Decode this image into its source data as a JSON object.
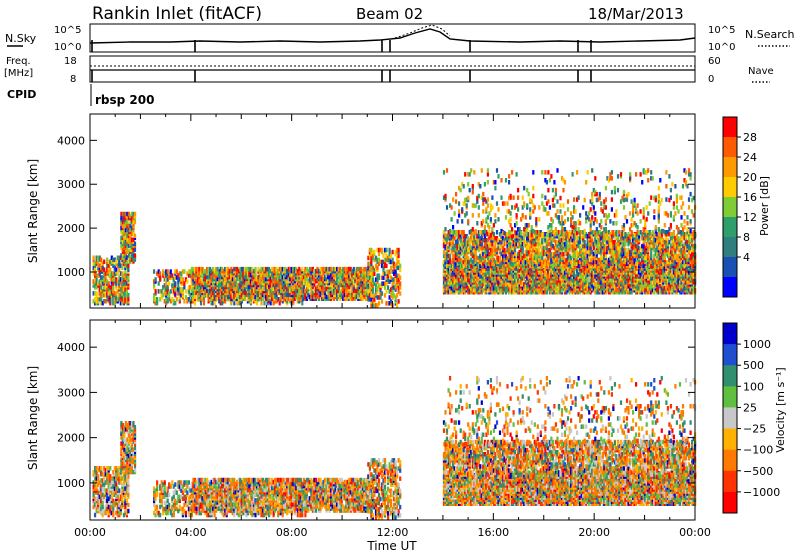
{
  "header": {
    "station": "Rankin Inlet (fitACF)",
    "beam": "Beam 02",
    "date": "18/Mar/2013"
  },
  "top_panel": {
    "left_label": "N.Sky",
    "right_label": "N.Search",
    "left_ticks": [
      "10^5",
      "10^0"
    ],
    "right_ticks": [
      "10^5",
      "10^0"
    ]
  },
  "freq_panel": {
    "left_label_1": "Freq.",
    "left_label_2": "[MHz]",
    "left_ticks": [
      "18",
      "8"
    ],
    "right_label": "Nave",
    "right_ticks": [
      "60",
      "0"
    ],
    "cpid_label": "CPID",
    "cpid_value": "rbsp 200"
  },
  "chart_data": [
    {
      "type": "heatmap",
      "name": "power",
      "ylabel": "Slant Range [km]",
      "xlabel": "",
      "ylim": [
        180,
        4600
      ],
      "yticks": [
        "1000",
        "2000",
        "3000",
        "4000"
      ],
      "colorbar": {
        "label": "Power [dB]",
        "ticks": [
          "28",
          "24",
          "20",
          "16",
          "12",
          "8",
          "4"
        ],
        "colors": [
          "#ff0000",
          "#ff5a00",
          "#ff9900",
          "#ffcc00",
          "#7fcc33",
          "#2e9e6b",
          "#2f7f7f",
          "#1a4fb3",
          "#0000ff"
        ]
      }
    },
    {
      "type": "heatmap",
      "name": "velocity",
      "ylabel": "Slant Range [km]",
      "xlabel": "Time UT",
      "ylim": [
        180,
        4600
      ],
      "yticks": [
        "1000",
        "2000",
        "3000",
        "4000"
      ],
      "xticks": [
        "00:00",
        "04:00",
        "08:00",
        "12:00",
        "16:00",
        "20:00",
        "00:00"
      ],
      "colorbar": {
        "label": "Velocity [m s⁻¹]",
        "ticks": [
          "1000",
          "500",
          "100",
          "25",
          "−25",
          "−100",
          "−500",
          "−1000"
        ],
        "colors": [
          "#0000cc",
          "#1f4fd0",
          "#2f8f6f",
          "#5fbf3f",
          "#c8c8c8",
          "#ffb000",
          "#ff7a00",
          "#ff3300",
          "#ff0000"
        ]
      }
    }
  ]
}
